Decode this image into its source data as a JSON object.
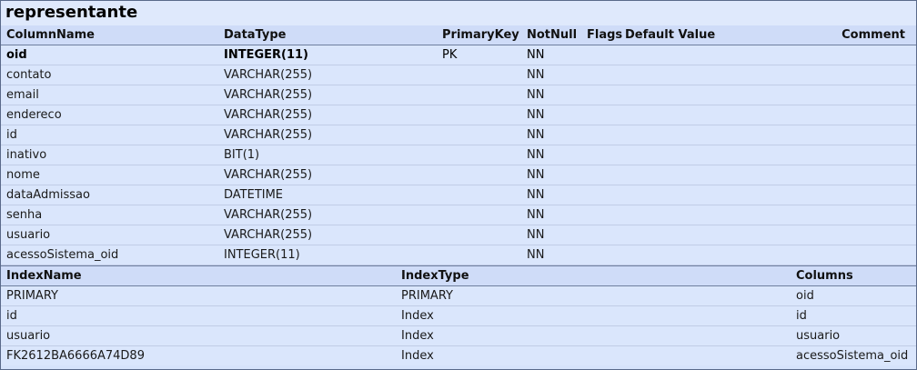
{
  "table_name": "representante",
  "columns_header": {
    "name": "ColumnName",
    "type": "DataType",
    "pk": "PrimaryKey",
    "nn": "NotNull",
    "flags": "Flags",
    "default": "Default Value",
    "comment": "Comment"
  },
  "columns": [
    {
      "name": "oid",
      "type": "INTEGER(11)",
      "pk": "PK",
      "nn": "NN"
    },
    {
      "name": "contato",
      "type": "VARCHAR(255)",
      "pk": "",
      "nn": "NN"
    },
    {
      "name": "email",
      "type": "VARCHAR(255)",
      "pk": "",
      "nn": "NN"
    },
    {
      "name": "endereco",
      "type": "VARCHAR(255)",
      "pk": "",
      "nn": "NN"
    },
    {
      "name": "id",
      "type": "VARCHAR(255)",
      "pk": "",
      "nn": "NN"
    },
    {
      "name": "inativo",
      "type": "BIT(1)",
      "pk": "",
      "nn": "NN"
    },
    {
      "name": "nome",
      "type": "VARCHAR(255)",
      "pk": "",
      "nn": "NN"
    },
    {
      "name": "dataAdmissao",
      "type": "DATETIME",
      "pk": "",
      "nn": "NN"
    },
    {
      "name": "senha",
      "type": "VARCHAR(255)",
      "pk": "",
      "nn": "NN"
    },
    {
      "name": "usuario",
      "type": "VARCHAR(255)",
      "pk": "",
      "nn": "NN"
    },
    {
      "name": "acessoSistema_oid",
      "type": "INTEGER(11)",
      "pk": "",
      "nn": "NN"
    }
  ],
  "indexes_header": {
    "name": "IndexName",
    "type": "IndexType",
    "columns": "Columns"
  },
  "indexes": [
    {
      "name": "PRIMARY",
      "type": "PRIMARY",
      "columns": "oid"
    },
    {
      "name": "id",
      "type": "Index",
      "columns": "id"
    },
    {
      "name": "usuario",
      "type": "Index",
      "columns": "usuario"
    },
    {
      "name": "FK2612BA6666A74D89",
      "type": "Index",
      "columns": "acessoSistema_oid"
    }
  ]
}
